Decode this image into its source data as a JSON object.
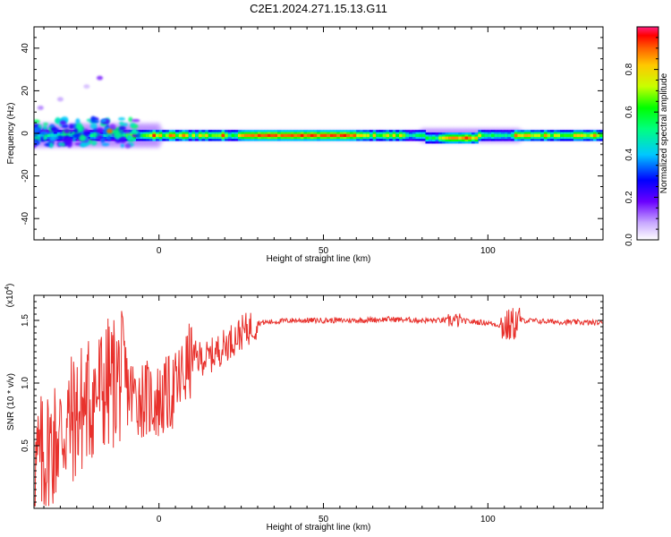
{
  "title": "C2E1.2024.271.15.13.G11",
  "chart_data": [
    {
      "type": "heatmap",
      "name": "spectrogram",
      "xlabel": "Height of straight line (km)",
      "ylabel": "Frequency (Hz)",
      "xlim": [
        -38,
        135
      ],
      "ylim": [
        -50,
        50
      ],
      "xticks": [
        0,
        50,
        100
      ],
      "yticks": [
        -40,
        -20,
        0,
        20,
        40
      ],
      "colorbar": {
        "label": "Normalized spectral amplitude",
        "range": [
          0,
          1
        ],
        "ticks": [
          0.0,
          0.2,
          0.4,
          0.6,
          0.8
        ]
      },
      "background_color": "#ffffff",
      "dominant_band": {
        "frequency_hz": -1,
        "x_range": [
          -10,
          135
        ],
        "peak_amplitude": 0.95
      },
      "scatter_blobs": [
        {
          "x": -35,
          "y": 0,
          "amp": 0.35
        },
        {
          "x": -32,
          "y": 2,
          "amp": 0.25
        },
        {
          "x": -30,
          "y": -2,
          "amp": 0.3
        },
        {
          "x": -28,
          "y": 1,
          "amp": 0.2
        },
        {
          "x": -25,
          "y": -1,
          "amp": 0.3
        },
        {
          "x": -22,
          "y": 0,
          "amp": 0.25
        },
        {
          "x": -15,
          "y": 1,
          "amp": 0.9
        },
        {
          "x": -36,
          "y": 12,
          "amp": 0.1
        },
        {
          "x": -30,
          "y": 16,
          "amp": 0.08
        },
        {
          "x": -18,
          "y": 26,
          "amp": 0.15
        },
        {
          "x": -22,
          "y": 22,
          "amp": 0.06
        }
      ]
    },
    {
      "type": "line",
      "name": "snr",
      "xlabel": "Height of straight line (km)",
      "ylabel": "SNR (10 * v/v)",
      "exponent_label": "(x10",
      "exponent_power": "4",
      "exponent_close": ")",
      "xlim": [
        -38,
        135
      ],
      "ylim": [
        0,
        1.7
      ],
      "xticks": [
        0,
        50,
        100
      ],
      "yticks": [
        0.5,
        1.0,
        1.5
      ],
      "line_color": "#e8312c",
      "key_points": [
        {
          "x": -38,
          "y": 0.3
        },
        {
          "x": -30,
          "y": 0.6
        },
        {
          "x": -20,
          "y": 0.9
        },
        {
          "x": -12,
          "y": 1.05
        },
        {
          "x": -8,
          "y": 0.9
        },
        {
          "x": 0,
          "y": 0.85
        },
        {
          "x": 5,
          "y": 0.95
        },
        {
          "x": 10,
          "y": 1.2
        },
        {
          "x": 15,
          "y": 1.2
        },
        {
          "x": 20,
          "y": 1.3
        },
        {
          "x": 25,
          "y": 1.4
        },
        {
          "x": 30,
          "y": 1.48
        },
        {
          "x": 40,
          "y": 1.5
        },
        {
          "x": 50,
          "y": 1.5
        },
        {
          "x": 60,
          "y": 1.5
        },
        {
          "x": 70,
          "y": 1.51
        },
        {
          "x": 80,
          "y": 1.5
        },
        {
          "x": 90,
          "y": 1.5
        },
        {
          "x": 100,
          "y": 1.48
        },
        {
          "x": 106,
          "y": 1.45
        },
        {
          "x": 110,
          "y": 1.5
        },
        {
          "x": 120,
          "y": 1.49
        },
        {
          "x": 135,
          "y": 1.48
        }
      ]
    }
  ]
}
